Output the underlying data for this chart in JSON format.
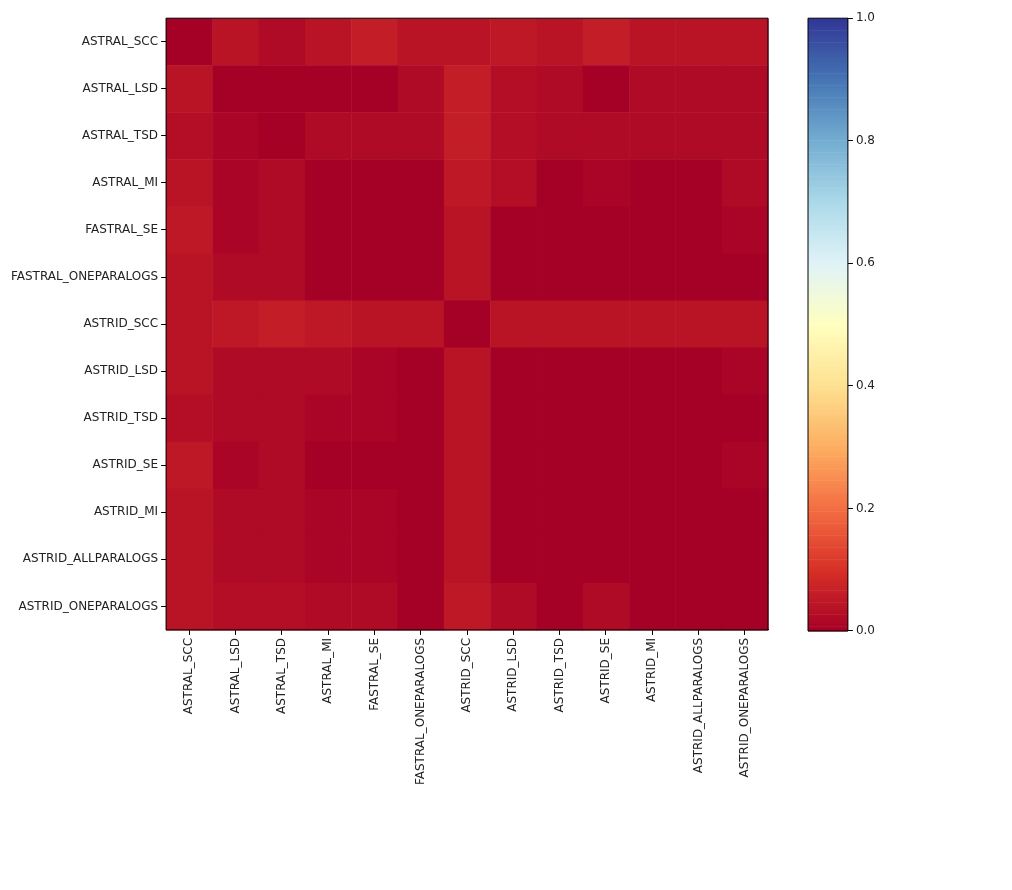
{
  "chart_data": {
    "type": "heatmap",
    "categories": [
      "ASTRAL_SCC",
      "ASTRAL_LSD",
      "ASTRAL_TSD",
      "ASTRAL_MI",
      "FASTRAL_SE",
      "FASTRAL_ONEPARALOGS",
      "ASTRID_SCC",
      "ASTRID_LSD",
      "ASTRID_TSD",
      "ASTRID_SE",
      "ASTRID_MI",
      "ASTRID_ALLPARALOGS",
      "ASTRID_ONEPARALOGS"
    ],
    "y_categories": [
      "ASTRAL_SCC",
      "ASTRAL_LSD",
      "ASTRAL_TSD",
      "ASTRAL_MI",
      "FASTRAL_SE",
      "FASTRAL_ONEPARALOGS",
      "ASTRID_SCC",
      "ASTRID_LSD",
      "ASTRID_TSD",
      "ASTRID_SE",
      "ASTRID_MI",
      "ASTRID_ALLPARALOGS",
      "ASTRID_ONEPARALOGS"
    ],
    "cells": [
      [
        0,
        0.04,
        0.02,
        0.04,
        0.06,
        0.04,
        0.04,
        0.05,
        0.04,
        0.06,
        0.04,
        0.04,
        0.04
      ],
      [
        0.04,
        0,
        0,
        0,
        0,
        0.02,
        0.06,
        0.03,
        0.02,
        0,
        0.02,
        0.02,
        0.02
      ],
      [
        0.03,
        0.01,
        0,
        0.02,
        0.02,
        0.02,
        0.06,
        0.03,
        0.02,
        0.02,
        0.02,
        0.02,
        0.02
      ],
      [
        0.04,
        0.01,
        0.02,
        0,
        0,
        0,
        0.05,
        0.03,
        0,
        0.01,
        0,
        0,
        0.02
      ],
      [
        0.05,
        0.01,
        0.02,
        0,
        0,
        0,
        0.04,
        0,
        0,
        0,
        0,
        0,
        0.01
      ],
      [
        0.04,
        0.02,
        0.02,
        0,
        0,
        0,
        0.04,
        0,
        0,
        0,
        0,
        0,
        0
      ],
      [
        0.04,
        0.05,
        0.06,
        0.05,
        0.04,
        0.04,
        0,
        0.04,
        0.04,
        0.04,
        0.04,
        0.04,
        0.04
      ],
      [
        0.04,
        0.02,
        0.02,
        0.02,
        0.01,
        0,
        0.04,
        0,
        0,
        0,
        0,
        0,
        0.01
      ],
      [
        0.03,
        0.02,
        0.02,
        0.01,
        0.01,
        0,
        0.04,
        0,
        0,
        0,
        0,
        0,
        0
      ],
      [
        0.05,
        0.01,
        0.02,
        0,
        0,
        0,
        0.04,
        0,
        0,
        0,
        0,
        0,
        0.01
      ],
      [
        0.04,
        0.02,
        0.02,
        0.01,
        0.01,
        0,
        0.04,
        0,
        0,
        0,
        0,
        0,
        0
      ],
      [
        0.04,
        0.02,
        0.02,
        0.01,
        0.01,
        0,
        0.04,
        0,
        0,
        0,
        0,
        0,
        0
      ],
      [
        0.04,
        0.03,
        0.03,
        0.02,
        0.02,
        0,
        0.05,
        0.02,
        0,
        0.02,
        0,
        0,
        0
      ]
    ],
    "clim": [
      0,
      1
    ],
    "cticks": [
      {
        "value": 0,
        "label": "0.0"
      },
      0.2,
      0.4,
      0.6,
      0.8,
      {
        "value": 1,
        "label": "1.0"
      }
    ]
  }
}
